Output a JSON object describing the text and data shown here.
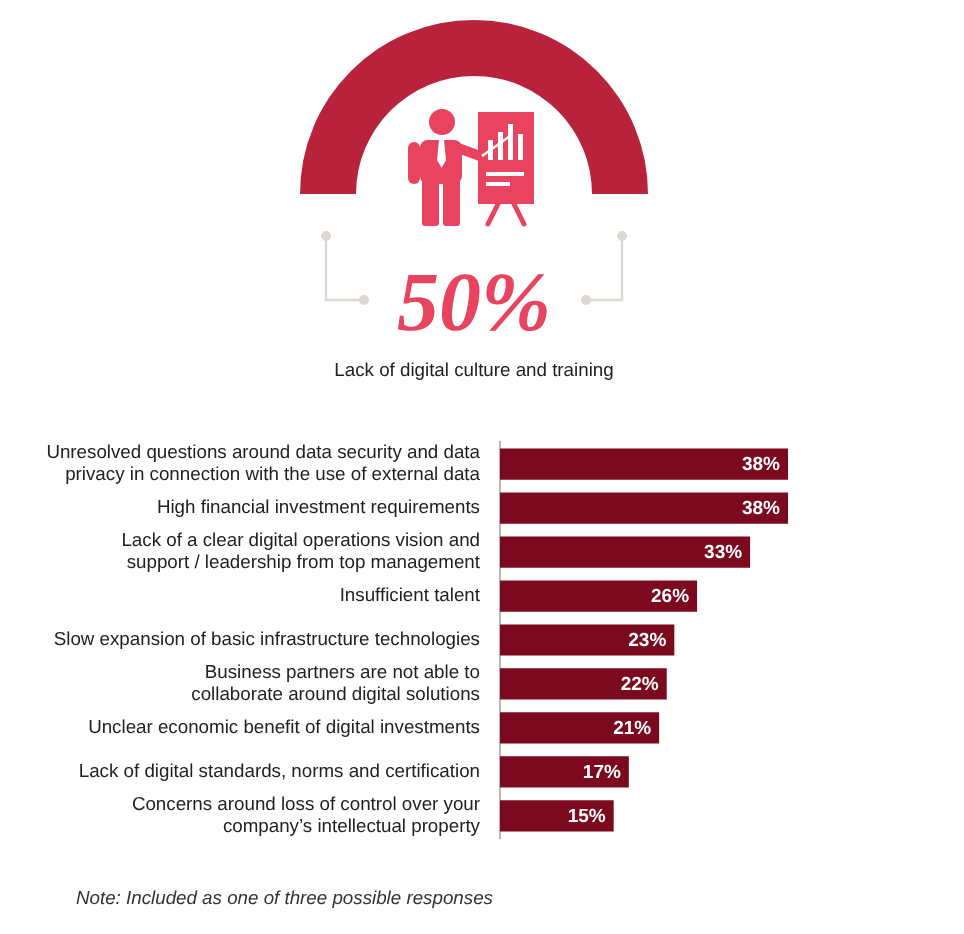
{
  "chart_data": [
    {
      "type": "other",
      "annotations": [
        "50%",
        "Lack of digital culture and training"
      ],
      "color": "#e8435f"
    },
    {
      "type": "bar",
      "orientation": "horizontal",
      "categories": [
        "Unresolved questions around data security and data\nprivacy in connection with the use of external data",
        "High financial investment requirements",
        "Lack of a clear digital operations vision and\nsupport / leadership from top management",
        "Insufficient talent",
        "Slow expansion of basic infrastructure technologies",
        "Business partners are not able to\ncollaborate around digital solutions",
        "Unclear economic benefit of digital investments",
        "Lack of digital standards, norms and certification",
        "Concerns around loss of control over your\ncompany’s intellectual property"
      ],
      "values": [
        38,
        38,
        33,
        26,
        23,
        22,
        21,
        17,
        15
      ],
      "value_labels": [
        "38%",
        "38%",
        "33%",
        "26%",
        "23%",
        "22%",
        "21%",
        "17%",
        "15%"
      ],
      "color": "#7c0a1f",
      "tick_labels": "y",
      "annotations": [
        "Note: Included as one of three possible responses"
      ]
    }
  ]
}
